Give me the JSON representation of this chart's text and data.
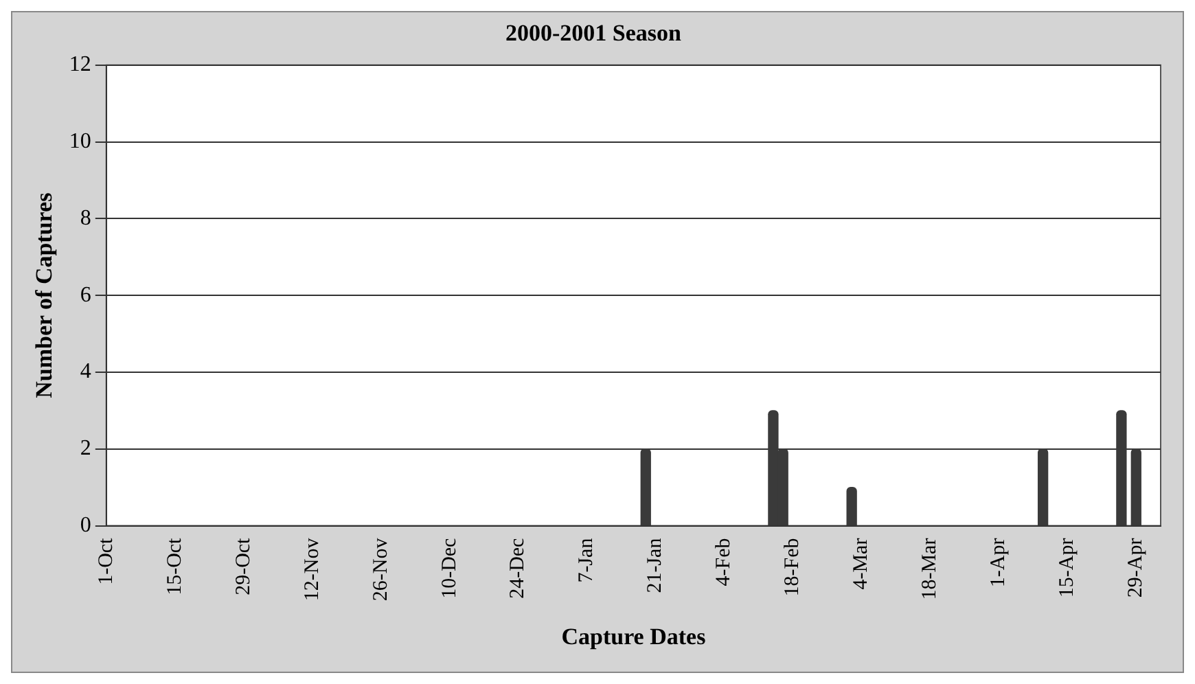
{
  "chart_data": {
    "type": "bar",
    "title": "2000-2001 Season",
    "xlabel": "Capture Dates",
    "ylabel": "Number of Captures",
    "x": [
      "2001-01-19",
      "2001-02-14",
      "2001-02-16",
      "2001-03-02",
      "2001-04-10",
      "2001-04-26",
      "2001-04-29"
    ],
    "values": [
      2,
      3,
      2,
      1,
      2,
      3,
      2
    ],
    "color": "#3a3a3a",
    "xlim": [
      "2000-10-01",
      "2001-05-04"
    ],
    "xticks": [
      {
        "value": "2000-10-01",
        "label": "1-Oct"
      },
      {
        "value": "2000-10-15",
        "label": "15-Oct"
      },
      {
        "value": "2000-10-29",
        "label": "29-Oct"
      },
      {
        "value": "2000-11-12",
        "label": "12-Nov"
      },
      {
        "value": "2000-11-26",
        "label": "26-Nov"
      },
      {
        "value": "2000-12-10",
        "label": "10-Dec"
      },
      {
        "value": "2000-12-24",
        "label": "24-Dec"
      },
      {
        "value": "2001-01-07",
        "label": "7-Jan"
      },
      {
        "value": "2001-01-21",
        "label": "21-Jan"
      },
      {
        "value": "2001-02-04",
        "label": "4-Feb"
      },
      {
        "value": "2001-02-18",
        "label": "18-Feb"
      },
      {
        "value": "2001-03-04",
        "label": "4-Mar"
      },
      {
        "value": "2001-03-18",
        "label": "18-Mar"
      },
      {
        "value": "2001-04-01",
        "label": "1-Apr"
      },
      {
        "value": "2001-04-15",
        "label": "15-Apr"
      },
      {
        "value": "2001-04-29",
        "label": "29-Apr"
      }
    ],
    "ylim": [
      0,
      12
    ],
    "yticks": [
      0,
      2,
      4,
      6,
      8,
      10,
      12
    ],
    "grid": "y"
  }
}
